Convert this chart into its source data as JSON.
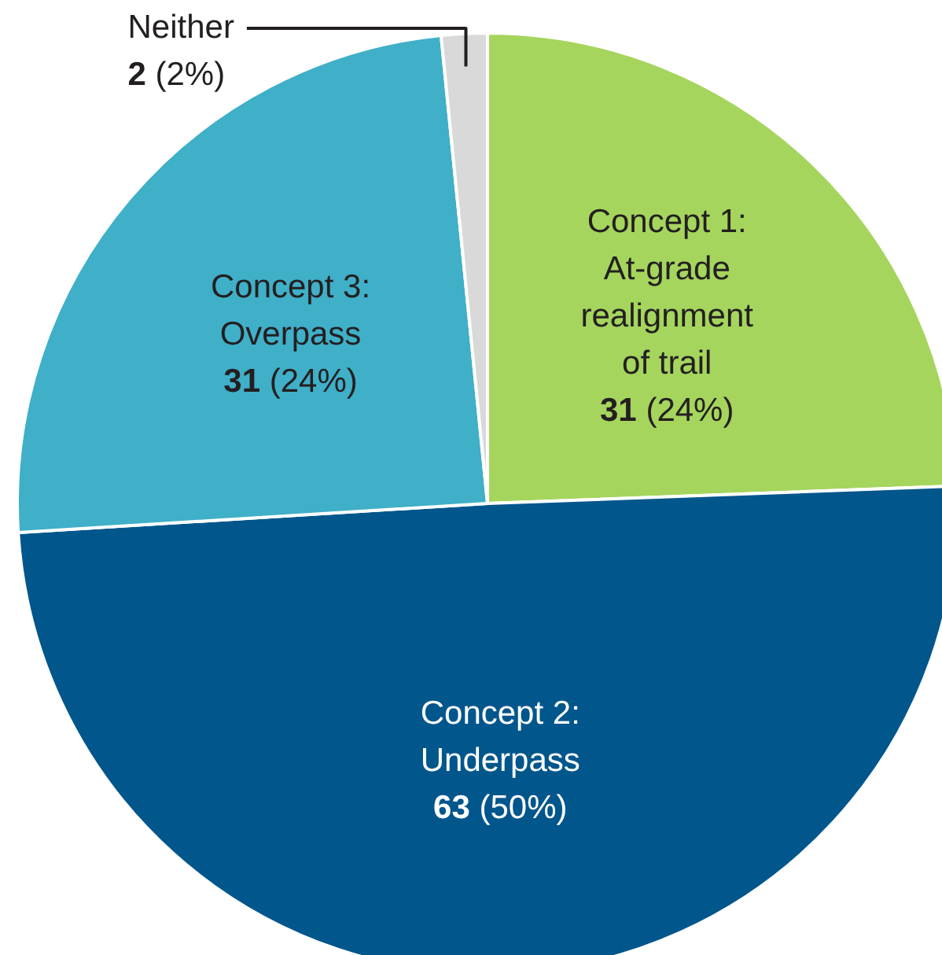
{
  "chart_data": {
    "type": "pie",
    "categories": [
      "Concept 1:\nAt-grade\nrealignment\nof trail",
      "Concept 2:\nUnderpass",
      "Concept 3:\nOverpass",
      "Neither"
    ],
    "values": [
      31,
      63,
      31,
      2
    ],
    "value_labels": [
      "31 (24%)",
      "63 (50%)",
      "31 (24%)",
      "2 (2%)"
    ],
    "colors": [
      "#a5d55d",
      "#01568c",
      "#40afc8",
      "#d9d9d9"
    ],
    "legend": false
  }
}
